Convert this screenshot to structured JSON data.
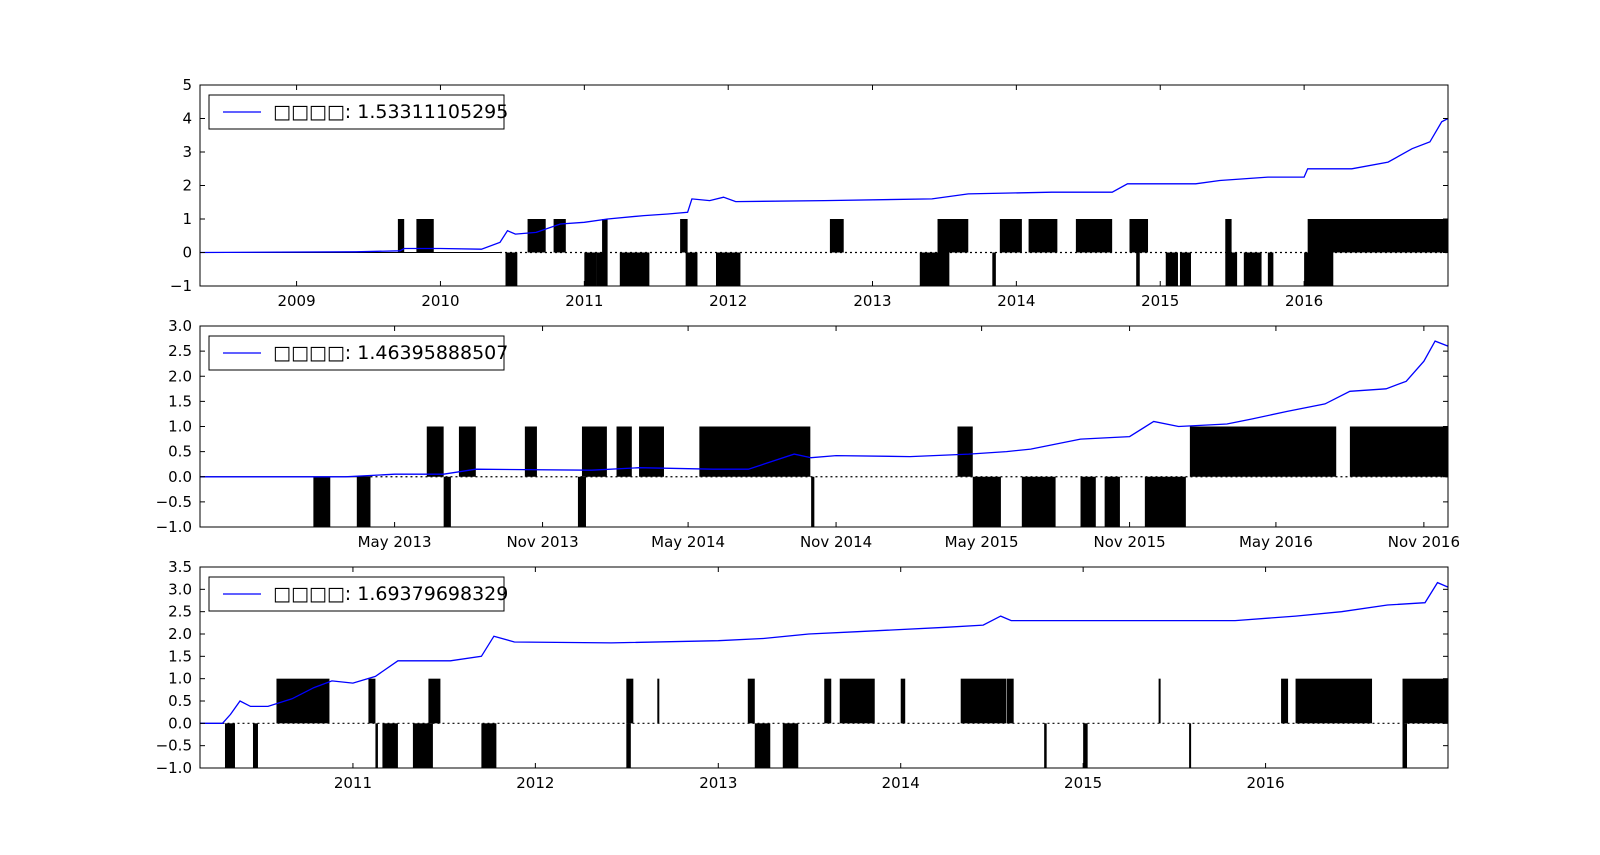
{
  "colors": {
    "equity": "#0000ff",
    "position": "#000000",
    "axes": "#000000",
    "background": "#ffffff"
  },
  "chart_data": [
    {
      "type": "line",
      "legend": {
        "placement": "top-left",
        "label": "□□□□: 1.53311105295"
      },
      "grid": false,
      "xlim": [
        "2008-05-01",
        "2016-12-31"
      ],
      "ylim": [
        -1,
        5
      ],
      "yticks": [
        "−1",
        "0",
        "1",
        "2",
        "3",
        "4",
        "5"
      ],
      "xticks": [
        {
          "date": "2009-01-01",
          "label": "2009"
        },
        {
          "date": "2010-01-01",
          "label": "2010"
        },
        {
          "date": "2011-01-01",
          "label": "2011"
        },
        {
          "date": "2012-01-01",
          "label": "2012"
        },
        {
          "date": "2013-01-01",
          "label": "2013"
        },
        {
          "date": "2014-01-01",
          "label": "2014"
        },
        {
          "date": "2015-01-01",
          "label": "2015"
        },
        {
          "date": "2016-01-01",
          "label": "2016"
        }
      ],
      "series": [
        {
          "role": "equity",
          "points": [
            [
              "2008-05-01",
              0.0
            ],
            [
              "2009-06-01",
              0.02
            ],
            [
              "2009-09-20",
              0.05
            ],
            [
              "2009-10-01",
              0.12
            ],
            [
              "2010-01-01",
              0.12
            ],
            [
              "2010-04-15",
              0.1
            ],
            [
              "2010-06-01",
              0.3
            ],
            [
              "2010-06-20",
              0.65
            ],
            [
              "2010-07-10",
              0.55
            ],
            [
              "2010-09-01",
              0.6
            ],
            [
              "2010-11-01",
              0.85
            ],
            [
              "2011-01-01",
              0.9
            ],
            [
              "2011-03-01",
              1.0
            ],
            [
              "2011-06-01",
              1.1
            ],
            [
              "2011-08-01",
              1.15
            ],
            [
              "2011-09-20",
              1.2
            ],
            [
              "2011-10-01",
              1.6
            ],
            [
              "2011-11-15",
              1.55
            ],
            [
              "2011-12-20",
              1.65
            ],
            [
              "2012-01-20",
              1.52
            ],
            [
              "2012-09-01",
              1.55
            ],
            [
              "2013-06-01",
              1.6
            ],
            [
              "2013-09-01",
              1.75
            ],
            [
              "2014-04-01",
              1.8
            ],
            [
              "2014-09-01",
              1.8
            ],
            [
              "2014-10-10",
              2.05
            ],
            [
              "2015-04-01",
              2.05
            ],
            [
              "2015-06-01",
              2.15
            ],
            [
              "2015-10-01",
              2.25
            ],
            [
              "2016-01-01",
              2.25
            ],
            [
              "2016-01-10",
              2.5
            ],
            [
              "2016-05-01",
              2.5
            ],
            [
              "2016-08-01",
              2.7
            ],
            [
              "2016-10-01",
              3.1
            ],
            [
              "2016-11-15",
              3.3
            ],
            [
              "2016-12-15",
              3.9
            ],
            [
              "2016-12-31",
              4.0
            ]
          ]
        },
        {
          "role": "position",
          "up": [
            [
              "2009-09-15",
              "2009-10-01"
            ],
            [
              "2009-11-01",
              "2009-12-15"
            ],
            [
              "2010-08-10",
              "2010-09-25"
            ],
            [
              "2010-10-15",
              "2010-11-15"
            ],
            [
              "2011-02-15",
              "2011-03-01"
            ],
            [
              "2011-09-01",
              "2011-09-20"
            ],
            [
              "2012-09-15",
              "2012-10-20"
            ],
            [
              "2013-12-01",
              "2013-12-15"
            ],
            [
              "2013-06-15",
              "2013-09-01"
            ],
            [
              "2013-11-20",
              "2014-01-15"
            ],
            [
              "2014-02-01",
              "2014-04-15"
            ],
            [
              "2014-06-01",
              "2014-09-01"
            ],
            [
              "2014-10-15",
              "2014-12-01"
            ],
            [
              "2015-06-15",
              "2015-07-01"
            ],
            [
              "2016-01-10",
              "2016-12-31"
            ]
          ],
          "down": [
            [
              "2010-06-15",
              "2010-07-15"
            ],
            [
              "2011-01-01",
              "2011-02-01"
            ],
            [
              "2011-02-01",
              "2011-03-01"
            ],
            [
              "2011-04-01",
              "2011-06-15"
            ],
            [
              "2011-09-15",
              "2011-10-15"
            ],
            [
              "2011-12-01",
              "2012-02-01"
            ],
            [
              "2013-05-01",
              "2013-07-15"
            ],
            [
              "2013-11-01",
              "2013-11-10"
            ],
            [
              "2014-11-01",
              "2014-11-10"
            ],
            [
              "2015-01-15",
              "2015-02-15"
            ],
            [
              "2015-02-20",
              "2015-03-20"
            ],
            [
              "2015-06-15",
              "2015-07-15"
            ],
            [
              "2015-08-01",
              "2015-09-15"
            ],
            [
              "2015-10-01",
              "2015-10-15"
            ],
            [
              "2016-01-01",
              "2016-03-15"
            ]
          ],
          "flat_until": "2010-06-01"
        }
      ]
    },
    {
      "type": "line",
      "legend": {
        "placement": "top-left",
        "label": "□□□□: 1.46395888507"
      },
      "grid": false,
      "xlim": [
        "2012-09-01",
        "2016-12-01"
      ],
      "ylim": [
        -1.0,
        3.0
      ],
      "yticks": [
        "−1.0",
        "−0.5",
        "0.0",
        "0.5",
        "1.0",
        "1.5",
        "2.0",
        "2.5",
        "3.0"
      ],
      "xticks": [
        {
          "date": "2013-05-01",
          "label": "May 2013"
        },
        {
          "date": "2013-11-01",
          "label": "Nov 2013"
        },
        {
          "date": "2014-05-01",
          "label": "May 2014"
        },
        {
          "date": "2014-11-01",
          "label": "Nov 2014"
        },
        {
          "date": "2015-05-01",
          "label": "May 2015"
        },
        {
          "date": "2015-11-01",
          "label": "Nov 2015"
        },
        {
          "date": "2016-05-01",
          "label": "May 2016"
        },
        {
          "date": "2016-11-01",
          "label": "Nov 2016"
        }
      ],
      "series": [
        {
          "role": "equity",
          "points": [
            [
              "2012-09-01",
              0.0
            ],
            [
              "2013-03-01",
              0.0
            ],
            [
              "2013-05-01",
              0.05
            ],
            [
              "2013-07-01",
              0.05
            ],
            [
              "2013-08-10",
              0.15
            ],
            [
              "2014-01-01",
              0.13
            ],
            [
              "2014-03-01",
              0.18
            ],
            [
              "2014-06-01",
              0.15
            ],
            [
              "2014-07-15",
              0.15
            ],
            [
              "2014-09-10",
              0.45
            ],
            [
              "2014-10-01",
              0.38
            ],
            [
              "2014-11-01",
              0.42
            ],
            [
              "2015-02-01",
              0.4
            ],
            [
              "2015-04-15",
              0.45
            ],
            [
              "2015-06-01",
              0.5
            ],
            [
              "2015-07-01",
              0.55
            ],
            [
              "2015-09-01",
              0.75
            ],
            [
              "2015-11-01",
              0.8
            ],
            [
              "2015-12-01",
              1.1
            ],
            [
              "2016-01-01",
              1.0
            ],
            [
              "2016-03-01",
              1.05
            ],
            [
              "2016-04-01",
              1.15
            ],
            [
              "2016-05-15",
              1.3
            ],
            [
              "2016-07-01",
              1.45
            ],
            [
              "2016-08-01",
              1.7
            ],
            [
              "2016-09-15",
              1.75
            ],
            [
              "2016-10-10",
              1.9
            ],
            [
              "2016-11-01",
              2.3
            ],
            [
              "2016-11-15",
              2.7
            ],
            [
              "2016-12-01",
              2.6
            ]
          ]
        },
        {
          "role": "position",
          "up": [
            [
              "2013-06-10",
              "2013-07-01"
            ],
            [
              "2013-07-20",
              "2013-08-10"
            ],
            [
              "2013-10-10",
              "2013-10-25"
            ],
            [
              "2013-12-20",
              "2014-01-20"
            ],
            [
              "2014-02-01",
              "2014-02-20"
            ],
            [
              "2014-03-01",
              "2014-04-01"
            ],
            [
              "2014-05-15",
              "2014-09-30"
            ],
            [
              "2015-04-01",
              "2015-04-20"
            ],
            [
              "2016-01-15",
              "2016-07-15"
            ],
            [
              "2016-08-01",
              "2016-12-01"
            ]
          ],
          "down": [
            [
              "2013-01-20",
              "2013-02-10"
            ],
            [
              "2013-03-15",
              "2013-04-01"
            ],
            [
              "2013-07-01",
              "2013-07-10"
            ],
            [
              "2013-12-15",
              "2013-12-25"
            ],
            [
              "2014-10-01",
              "2014-10-05"
            ],
            [
              "2015-04-20",
              "2015-05-25"
            ],
            [
              "2015-06-20",
              "2015-08-01"
            ],
            [
              "2015-09-01",
              "2015-09-20"
            ],
            [
              "2015-10-01",
              "2015-10-20"
            ],
            [
              "2015-11-20",
              "2016-01-10"
            ]
          ],
          "flat_until": "2013-04-01"
        }
      ]
    },
    {
      "type": "line",
      "legend": {
        "placement": "top-left",
        "label": "□□□□: 1.69379698329"
      },
      "grid": false,
      "xlim": [
        "2010-03-01",
        "2016-12-31"
      ],
      "ylim": [
        -1.0,
        3.5
      ],
      "yticks": [
        "−1.0",
        "−0.5",
        "0.0",
        "0.5",
        "1.0",
        "1.5",
        "2.0",
        "2.5",
        "3.0",
        "3.5"
      ],
      "xticks": [
        {
          "date": "2011-01-01",
          "label": "2011"
        },
        {
          "date": "2012-01-01",
          "label": "2012"
        },
        {
          "date": "2013-01-01",
          "label": "2013"
        },
        {
          "date": "2014-01-01",
          "label": "2014"
        },
        {
          "date": "2015-01-01",
          "label": "2015"
        },
        {
          "date": "2016-01-01",
          "label": "2016"
        }
      ],
      "series": [
        {
          "role": "equity",
          "points": [
            [
              "2010-03-01",
              0.0
            ],
            [
              "2010-04-15",
              0.0
            ],
            [
              "2010-05-01",
              0.2
            ],
            [
              "2010-05-20",
              0.5
            ],
            [
              "2010-06-10",
              0.38
            ],
            [
              "2010-07-15",
              0.38
            ],
            [
              "2010-09-01",
              0.55
            ],
            [
              "2010-10-15",
              0.8
            ],
            [
              "2010-11-20",
              0.95
            ],
            [
              "2011-01-01",
              0.9
            ],
            [
              "2011-02-15",
              1.05
            ],
            [
              "2011-04-01",
              1.4
            ],
            [
              "2011-07-15",
              1.4
            ],
            [
              "2011-09-15",
              1.5
            ],
            [
              "2011-10-10",
              1.95
            ],
            [
              "2011-11-20",
              1.82
            ],
            [
              "2012-06-01",
              1.8
            ],
            [
              "2013-01-01",
              1.85
            ],
            [
              "2013-04-01",
              1.9
            ],
            [
              "2013-07-01",
              2.0
            ],
            [
              "2013-10-01",
              2.05
            ],
            [
              "2014-04-01",
              2.15
            ],
            [
              "2014-06-15",
              2.2
            ],
            [
              "2014-07-20",
              2.4
            ],
            [
              "2014-08-10",
              2.3
            ],
            [
              "2015-06-01",
              2.3
            ],
            [
              "2015-08-01",
              2.3
            ],
            [
              "2015-11-01",
              2.3
            ],
            [
              "2016-03-01",
              2.4
            ],
            [
              "2016-06-01",
              2.5
            ],
            [
              "2016-09-01",
              2.65
            ],
            [
              "2016-11-15",
              2.7
            ],
            [
              "2016-12-10",
              3.15
            ],
            [
              "2016-12-31",
              3.05
            ]
          ]
        },
        {
          "role": "position",
          "up": [
            [
              "2010-08-01",
              "2010-11-15"
            ],
            [
              "2011-02-01",
              "2011-02-15"
            ],
            [
              "2011-06-01",
              "2011-06-25"
            ],
            [
              "2012-07-01",
              "2012-07-15"
            ],
            [
              "2012-09-01",
              "2012-09-05"
            ],
            [
              "2013-03-01",
              "2013-03-15"
            ],
            [
              "2013-08-01",
              "2013-08-15"
            ],
            [
              "2013-09-01",
              "2013-11-10"
            ],
            [
              "2014-01-01",
              "2014-01-10"
            ],
            [
              "2014-05-01",
              "2014-07-31"
            ],
            [
              "2014-08-01",
              "2014-08-15"
            ],
            [
              "2015-06-01",
              "2015-06-05"
            ],
            [
              "2016-02-01",
              "2016-02-15"
            ],
            [
              "2016-03-01",
              "2016-08-01"
            ],
            [
              "2016-10-01",
              "2016-12-31"
            ]
          ],
          "down": [
            [
              "2010-04-20",
              "2010-05-10"
            ],
            [
              "2010-06-15",
              "2010-06-25"
            ],
            [
              "2011-02-15",
              "2011-02-20"
            ],
            [
              "2011-03-01",
              "2011-04-01"
            ],
            [
              "2011-05-01",
              "2011-06-10"
            ],
            [
              "2011-09-15",
              "2011-10-15"
            ],
            [
              "2012-07-01",
              "2012-07-10"
            ],
            [
              "2013-03-15",
              "2013-04-15"
            ],
            [
              "2013-05-10",
              "2013-06-10"
            ],
            [
              "2014-10-15",
              "2014-10-20"
            ],
            [
              "2015-01-01",
              "2015-01-10"
            ],
            [
              "2015-08-01",
              "2015-08-05"
            ],
            [
              "2016-10-01",
              "2016-10-10"
            ]
          ],
          "flat_until": "2010-04-15"
        }
      ]
    }
  ]
}
